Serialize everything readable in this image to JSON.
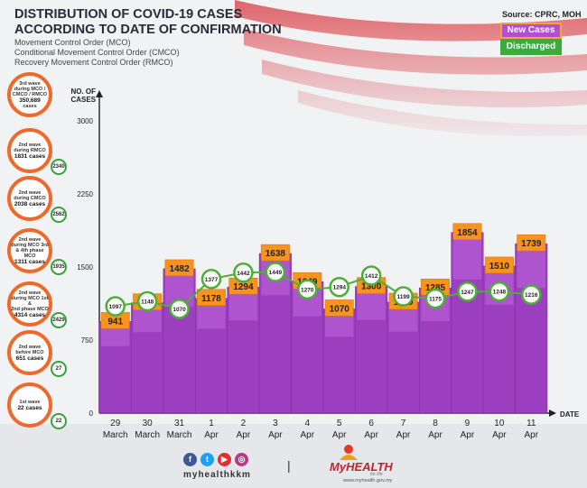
{
  "header": {
    "title_line1": "DISTRIBUTION OF COVID-19 CASES",
    "title_line2": "ACCORDING TO DATE OF CONFIRMATION",
    "abbr1": "Movement Control Order (MCO)",
    "abbr2": "Conditional Movement Control Order (CMCO)",
    "abbr3": "Recovery Movement Control Order (RMCO)",
    "source": "Source: CPRC, MOH"
  },
  "legend": {
    "new_cases": "New Cases",
    "discharged": "Discharged"
  },
  "colors": {
    "bar": "#9b3fc0",
    "bar_top": "#c56fe0",
    "label_box": "#f7931e",
    "line": "#4caf36",
    "orange": "#ef6a2a"
  },
  "waves": [
    {
      "l1": "3rd wave",
      "l2": "during MCO /",
      "l3": "CMCO / RMCO",
      "num": "350,689",
      "l4": "cases",
      "discharged": ""
    },
    {
      "l1": "2nd wave",
      "l2": "during RMCO",
      "l3": "",
      "num": "1831 cases",
      "l4": "",
      "discharged": "2340"
    },
    {
      "l1": "2nd wave",
      "l2": "during CMCO",
      "l3": "",
      "num": "2038 cases",
      "l4": "",
      "discharged": "2562"
    },
    {
      "l1": "2nd wave",
      "l2": "during MCO 3rd",
      "l3": "& 4th phase MCO",
      "num": "1311 cases",
      "l4": "",
      "discharged": "1935"
    },
    {
      "l1": "2nd wave",
      "l2": "during MCO 1st &",
      "l3": "2nd phase MCO",
      "num": "4314 cases",
      "l4": "",
      "discharged": "2429"
    },
    {
      "l1": "2nd wave",
      "l2": "before MCO",
      "l3": "",
      "num": "651 cases",
      "l4": "",
      "discharged": "27"
    },
    {
      "l1": "1st wave",
      "l2": "",
      "l3": "",
      "num": "22 cases",
      "l4": "",
      "discharged": "22"
    }
  ],
  "chart_data": {
    "type": "bar",
    "title": "DISTRIBUTION OF COVID-19 CASES ACCORDING TO DATE OF CONFIRMATION",
    "ylabel": "NO. OF CASES",
    "xlabel": "DATE",
    "ylim": [
      0,
      3000
    ],
    "yticks": [
      0,
      750,
      1500,
      2250,
      3000
    ],
    "categories": [
      [
        "29",
        "March"
      ],
      [
        "30",
        "March"
      ],
      [
        "31",
        "March"
      ],
      [
        "1",
        "Apr"
      ],
      [
        "2",
        "Apr"
      ],
      [
        "3",
        "Apr"
      ],
      [
        "4",
        "Apr"
      ],
      [
        "5",
        "Apr"
      ],
      [
        "6",
        "Apr"
      ],
      [
        "7",
        "Apr"
      ],
      [
        "8",
        "Apr"
      ],
      [
        "9",
        "Apr"
      ],
      [
        "10",
        "Apr"
      ],
      [
        "11",
        "Apr"
      ]
    ],
    "series": [
      {
        "name": "New Cases",
        "type": "bar",
        "values": [
          941,
          1133,
          1482,
          1178,
          1294,
          1638,
          1349,
          1070,
          1300,
          1139,
          1285,
          1854,
          1510,
          1739
        ]
      },
      {
        "name": "Discharged",
        "type": "line",
        "values": [
          1097,
          1148,
          1070,
          1377,
          1442,
          1449,
          1270,
          1294,
          1412,
          1199,
          1175,
          1247,
          1248,
          1216
        ]
      }
    ]
  },
  "footer": {
    "handle": "myhealthkkm",
    "divider": "|",
    "logo_my": "My",
    "logo_health": "HEALTH",
    "logo_tag": "for life",
    "url": "www.myhealth.gov.my"
  }
}
